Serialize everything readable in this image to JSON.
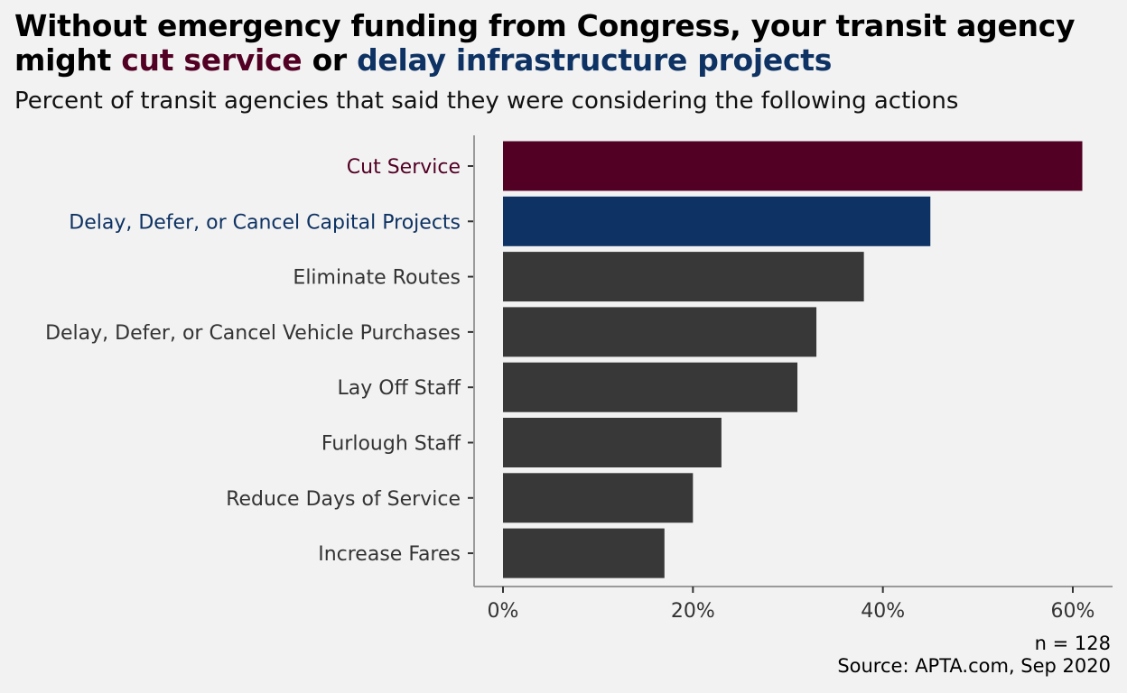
{
  "title": {
    "line1": "Without emergency funding from Congress, your transit agency",
    "line2_pre": "might ",
    "line2_highlight1": "cut service",
    "line2_mid": " or ",
    "line2_highlight2": "delay infrastructure projects"
  },
  "subtitle": "Percent of transit agencies that said they were considering the following actions",
  "caption": {
    "n": "n = 128",
    "source": "Source: APTA.com, Sep 2020"
  },
  "colors": {
    "highlight_red": "#520024",
    "highlight_blue": "#0d3263",
    "default_bar": "#383838",
    "axis": "#9a9a9a",
    "label_default": "#333333"
  },
  "chart_data": {
    "type": "bar",
    "orientation": "horizontal",
    "categories": [
      "Cut Service",
      "Delay, Defer, or Cancel Capital Projects",
      "Eliminate Routes",
      "Delay, Defer, or Cancel Vehicle Purchases",
      "Lay Off Staff",
      "Furlough Staff",
      "Reduce Days of Service",
      "Increase Fares"
    ],
    "values": [
      61,
      45,
      38,
      33,
      31,
      23,
      20,
      17
    ],
    "highlight": [
      "red",
      "blue",
      "none",
      "none",
      "none",
      "none",
      "none",
      "none"
    ],
    "xlim": [
      0,
      64
    ],
    "xticks": [
      0,
      20,
      40,
      60
    ],
    "xtick_labels": [
      "0%",
      "20%",
      "40%",
      "60%"
    ],
    "grid": false,
    "legend": "none"
  }
}
